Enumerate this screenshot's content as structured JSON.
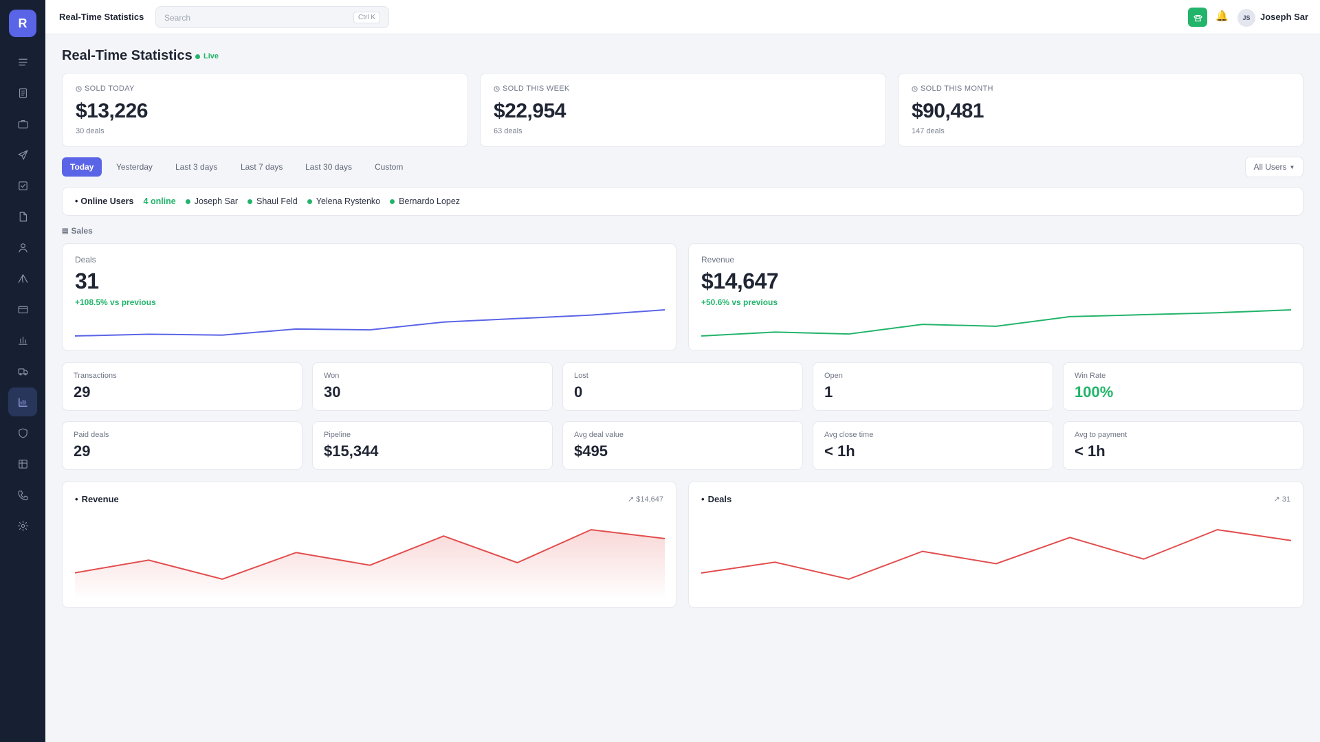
{
  "app": {
    "logo_letter": "R",
    "title": "Real-Time Statistics"
  },
  "search": {
    "placeholder": "Search",
    "shortcut": "Ctrl K"
  },
  "user": {
    "initials": "JS",
    "name": "Joseph Sar"
  },
  "sidebar": {
    "icons": [
      "menu-icon",
      "document-icon",
      "briefcase-icon",
      "send-icon",
      "checkbox-icon",
      "file-icon",
      "user-icon",
      "tent-icon",
      "card-icon",
      "bar-chart-icon",
      "truck-icon",
      "statistics-icon",
      "shield-icon",
      "table-icon",
      "phone-icon",
      "settings-icon"
    ],
    "active": "statistics-icon"
  },
  "page": {
    "title": "Real-Time Statistics",
    "live_label": "Live"
  },
  "sold": [
    {
      "label": "SOLD TODAY",
      "value": "$13,226",
      "deals": "30 deals"
    },
    {
      "label": "SOLD THIS WEEK",
      "value": "$22,954",
      "deals": "63 deals"
    },
    {
      "label": "SOLD THIS MONTH",
      "value": "$90,481",
      "deals": "147 deals"
    }
  ],
  "filters": {
    "tabs": [
      "Today",
      "Yesterday",
      "Last 3 days",
      "Last 7 days",
      "Last 30 days",
      "Custom"
    ],
    "active": "Today",
    "users_select": "All Users"
  },
  "online": {
    "title": "Online Users",
    "count": "4 online",
    "users": [
      "Joseph Sar",
      "Shaul Feld",
      "Yelena Rystenko",
      "Bernardo Lopez"
    ]
  },
  "sales": {
    "section_label": "Sales",
    "deals": {
      "label": "Deals",
      "value": "31",
      "change": "+108.5% vs previous",
      "color": "#5a64e6",
      "trend": [
        2,
        3,
        2.5,
        6,
        5.5,
        10,
        12,
        14,
        17
      ]
    },
    "revenue": {
      "label": "Revenue",
      "value": "$14,647",
      "change": "+50.6% vs previous",
      "color": "#22b46a",
      "trend": [
        2,
        4,
        3,
        8,
        7,
        12,
        13,
        14,
        15.5
      ]
    }
  },
  "stats_row1": [
    {
      "label": "Transactions",
      "value": "29"
    },
    {
      "label": "Won",
      "value": "30"
    },
    {
      "label": "Lost",
      "value": "0"
    },
    {
      "label": "Open",
      "value": "1"
    },
    {
      "label": "Win Rate",
      "value": "100%"
    }
  ],
  "stats_row2": [
    {
      "label": "Paid deals",
      "value": "29"
    },
    {
      "label": "Pipeline",
      "value": "$15,344"
    },
    {
      "label": "Avg deal value",
      "value": "$495"
    },
    {
      "label": "Avg close time",
      "value": "< 1h"
    },
    {
      "label": "Avg to payment",
      "value": "< 1h"
    }
  ],
  "charts": {
    "revenue": {
      "title": "Revenue",
      "total": "$14,647",
      "color": "#e24d4d",
      "values": [
        30,
        40,
        25,
        46,
        36,
        59,
        38,
        64,
        57
      ]
    },
    "deals": {
      "title": "Deals",
      "total": "31",
      "color": "#e24d4d",
      "values": [
        31,
        38,
        27,
        45,
        37,
        54,
        40,
        59,
        52
      ]
    }
  }
}
